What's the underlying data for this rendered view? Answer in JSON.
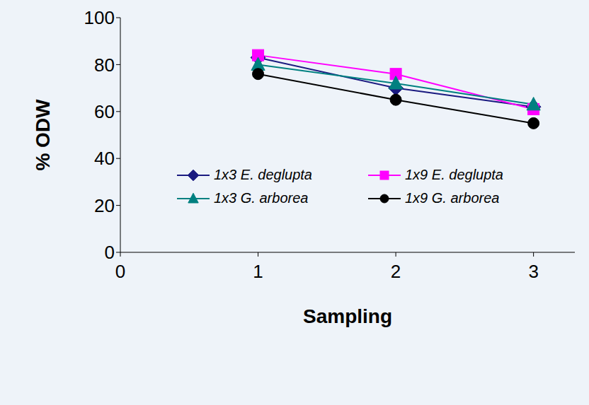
{
  "chart_data": {
    "type": "line",
    "x_label": "Sampling",
    "y_label": "% ODW",
    "x": [
      1,
      2,
      3
    ],
    "xlim": [
      0,
      3.3
    ],
    "xticks": [
      0,
      1,
      2,
      3
    ],
    "ylim": [
      0,
      100
    ],
    "yticks": [
      0,
      20,
      40,
      60,
      80,
      100
    ],
    "grid": false,
    "legend": "lower right",
    "series": [
      {
        "name": "1x3 E. deglupta",
        "color": "#1a1a80",
        "marker": "diamond",
        "values": [
          83,
          70,
          62
        ]
      },
      {
        "name": "1x9 E. deglupta",
        "color": "#ff00ff",
        "marker": "square",
        "values": [
          84,
          76,
          61
        ]
      },
      {
        "name": "1x3 G. arborea",
        "color": "#008080",
        "marker": "triangle",
        "values": [
          80,
          72,
          63
        ]
      },
      {
        "name": "1x9 G. arborea",
        "color": "#000000",
        "marker": "circle",
        "values": [
          76,
          65,
          55
        ]
      }
    ]
  }
}
